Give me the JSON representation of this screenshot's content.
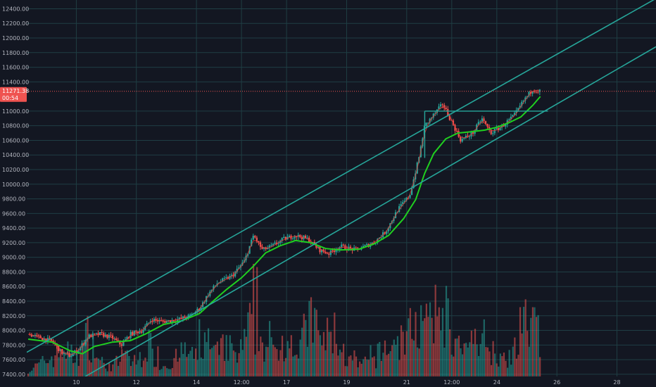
{
  "chart_data": {
    "type": "candlestick",
    "title": "",
    "xlabel": "",
    "ylabel": "",
    "ylim": [
      7370,
      12520
    ],
    "xlim": [
      8.35,
      29.3
    ],
    "y_ticks": [
      {
        "value": 12400,
        "label": "12400.00"
      },
      {
        "value": 12200,
        "label": "12200.00"
      },
      {
        "value": 12000,
        "label": "12000.00"
      },
      {
        "value": 11800,
        "label": "11800.00"
      },
      {
        "value": 11600,
        "label": "11600.00"
      },
      {
        "value": 11400,
        "label": "11400.00"
      },
      {
        "value": 11000,
        "label": "11000.00"
      },
      {
        "value": 10800,
        "label": "10800.00"
      },
      {
        "value": 10600,
        "label": "10600.00"
      },
      {
        "value": 10400,
        "label": "10400.00"
      },
      {
        "value": 10200,
        "label": "10200.00"
      },
      {
        "value": 10000,
        "label": "10000.00"
      },
      {
        "value": 9800,
        "label": "9800.00"
      },
      {
        "value": 9600,
        "label": "9600.00"
      },
      {
        "value": 9400,
        "label": "9400.00"
      },
      {
        "value": 9200,
        "label": "9200.00"
      },
      {
        "value": 9000,
        "label": "9000.00"
      },
      {
        "value": 8800,
        "label": "8800.00"
      },
      {
        "value": 8600,
        "label": "8600.00"
      },
      {
        "value": 8400,
        "label": "8400.00"
      },
      {
        "value": 8200,
        "label": "8200.00"
      },
      {
        "value": 8000,
        "label": "8000.00"
      },
      {
        "value": 7800,
        "label": "7800.00"
      },
      {
        "value": 7600,
        "label": "7600.00"
      },
      {
        "value": 7400,
        "label": "7400.00"
      }
    ],
    "x_ticks": [
      {
        "value": 10,
        "label": "10"
      },
      {
        "value": 12,
        "label": "12"
      },
      {
        "value": 14,
        "label": "14"
      },
      {
        "value": 15.5,
        "label": "12:00"
      },
      {
        "value": 17,
        "label": "17"
      },
      {
        "value": 19,
        "label": "19"
      },
      {
        "value": 21,
        "label": "21"
      },
      {
        "value": 22.5,
        "label": "12:00"
      },
      {
        "value": 24,
        "label": "24"
      },
      {
        "value": 26,
        "label": "26"
      },
      {
        "value": 28,
        "label": "28"
      }
    ],
    "current_price": {
      "value": 11271,
      "label": "11271.38",
      "countdown": "00:54"
    },
    "grid": true,
    "colors": {
      "background": "#131722",
      "grid": "#1f3e44",
      "up": "#26a69a",
      "down": "#ef5350",
      "fast_ma": "#e53935",
      "slow_ma": "#20d020",
      "channel": "#26a69a",
      "price_line": "#ef5350"
    },
    "price_path": [
      [
        8.4,
        7950
      ],
      [
        8.8,
        7900
      ],
      [
        9.2,
        7850
      ],
      [
        9.5,
        7700
      ],
      [
        9.8,
        7650
      ],
      [
        10.1,
        7750
      ],
      [
        10.4,
        7920
      ],
      [
        10.8,
        7950
      ],
      [
        11.2,
        7900
      ],
      [
        11.5,
        7800
      ],
      [
        11.8,
        7950
      ],
      [
        12.2,
        8000
      ],
      [
        12.5,
        8150
      ],
      [
        12.9,
        8120
      ],
      [
        13.4,
        8150
      ],
      [
        13.8,
        8200
      ],
      [
        14.1,
        8300
      ],
      [
        14.4,
        8500
      ],
      [
        14.7,
        8650
      ],
      [
        15.2,
        8750
      ],
      [
        15.6,
        8950
      ],
      [
        15.9,
        9300
      ],
      [
        16.2,
        9100
      ],
      [
        16.5,
        9150
      ],
      [
        16.9,
        9250
      ],
      [
        17.3,
        9300
      ],
      [
        17.7,
        9250
      ],
      [
        18.1,
        9100
      ],
      [
        18.4,
        9050
      ],
      [
        18.8,
        9150
      ],
      [
        19.3,
        9100
      ],
      [
        19.9,
        9200
      ],
      [
        20.3,
        9350
      ],
      [
        20.7,
        9650
      ],
      [
        21.1,
        9850
      ],
      [
        21.4,
        10350
      ],
      [
        21.6,
        10800
      ],
      [
        21.9,
        10950
      ],
      [
        22.2,
        11100
      ],
      [
        22.5,
        10850
      ],
      [
        22.8,
        10600
      ],
      [
        23.2,
        10700
      ],
      [
        23.5,
        10900
      ],
      [
        23.8,
        10700
      ],
      [
        24.2,
        10800
      ],
      [
        24.6,
        10950
      ],
      [
        24.9,
        11150
      ],
      [
        25.2,
        11300
      ],
      [
        25.45,
        11271
      ]
    ],
    "slow_ma": [
      [
        8.4,
        7880
      ],
      [
        9.2,
        7840
      ],
      [
        9.8,
        7720
      ],
      [
        10.2,
        7680
      ],
      [
        10.6,
        7780
      ],
      [
        11.2,
        7840
      ],
      [
        11.8,
        7860
      ],
      [
        12.3,
        7950
      ],
      [
        12.9,
        8080
      ],
      [
        13.5,
        8130
      ],
      [
        14.1,
        8230
      ],
      [
        14.5,
        8380
      ],
      [
        15.0,
        8560
      ],
      [
        15.5,
        8720
      ],
      [
        15.9,
        8880
      ],
      [
        16.3,
        9060
      ],
      [
        16.8,
        9160
      ],
      [
        17.3,
        9230
      ],
      [
        17.8,
        9200
      ],
      [
        18.3,
        9120
      ],
      [
        18.8,
        9100
      ],
      [
        19.4,
        9110
      ],
      [
        19.9,
        9180
      ],
      [
        20.4,
        9300
      ],
      [
        20.9,
        9530
      ],
      [
        21.3,
        9790
      ],
      [
        21.6,
        10150
      ],
      [
        21.9,
        10420
      ],
      [
        22.3,
        10620
      ],
      [
        22.7,
        10700
      ],
      [
        23.2,
        10720
      ],
      [
        23.6,
        10740
      ],
      [
        24.0,
        10780
      ],
      [
        24.4,
        10840
      ],
      [
        24.8,
        10920
      ],
      [
        25.2,
        11080
      ],
      [
        25.45,
        11200
      ]
    ],
    "volumes": [
      {
        "x": 8.5,
        "v": 30
      },
      {
        "x": 8.9,
        "v": 60
      },
      {
        "x": 9.3,
        "v": 90
      },
      {
        "x": 9.6,
        "v": 120
      },
      {
        "x": 10.0,
        "v": 70
      },
      {
        "x": 10.4,
        "v": 180
      },
      {
        "x": 10.8,
        "v": 60
      },
      {
        "x": 11.2,
        "v": 40
      },
      {
        "x": 11.6,
        "v": 90
      },
      {
        "x": 12.0,
        "v": 55
      },
      {
        "x": 12.4,
        "v": 140
      },
      {
        "x": 12.8,
        "v": 45
      },
      {
        "x": 13.2,
        "v": 60
      },
      {
        "x": 13.6,
        "v": 110
      },
      {
        "x": 14.0,
        "v": 75
      },
      {
        "x": 14.3,
        "v": 170
      },
      {
        "x": 14.6,
        "v": 90
      },
      {
        "x": 15.0,
        "v": 130
      },
      {
        "x": 15.4,
        "v": 80
      },
      {
        "x": 15.8,
        "v": 220
      },
      {
        "x": 16.2,
        "v": 150
      },
      {
        "x": 16.6,
        "v": 95
      },
      {
        "x": 17.0,
        "v": 180
      },
      {
        "x": 17.4,
        "v": 110
      },
      {
        "x": 17.8,
        "v": 250
      },
      {
        "x": 18.2,
        "v": 150
      },
      {
        "x": 18.6,
        "v": 190
      },
      {
        "x": 19.0,
        "v": 70
      },
      {
        "x": 19.4,
        "v": 50
      },
      {
        "x": 19.8,
        "v": 60
      },
      {
        "x": 20.2,
        "v": 110
      },
      {
        "x": 20.6,
        "v": 140
      },
      {
        "x": 21.0,
        "v": 170
      },
      {
        "x": 21.4,
        "v": 240
      },
      {
        "x": 21.8,
        "v": 200
      },
      {
        "x": 22.2,
        "v": 320
      },
      {
        "x": 22.6,
        "v": 140
      },
      {
        "x": 23.0,
        "v": 90
      },
      {
        "x": 23.4,
        "v": 200
      },
      {
        "x": 23.8,
        "v": 120
      },
      {
        "x": 24.2,
        "v": 80
      },
      {
        "x": 24.6,
        "v": 110
      },
      {
        "x": 25.0,
        "v": 230
      },
      {
        "x": 25.3,
        "v": 200
      }
    ],
    "channel_upper": [
      [
        8.35,
        7700
      ],
      [
        29.3,
        12540
      ]
    ],
    "channel_lower": [
      [
        10.3,
        7370
      ],
      [
        29.3,
        11880
      ]
    ],
    "trend_lines": [
      {
        "from": [
          21.6,
          10360
        ],
        "to": [
          21.6,
          11000
        ]
      },
      {
        "from": [
          21.6,
          11000
        ],
        "to": [
          25.7,
          11000
        ]
      }
    ]
  }
}
